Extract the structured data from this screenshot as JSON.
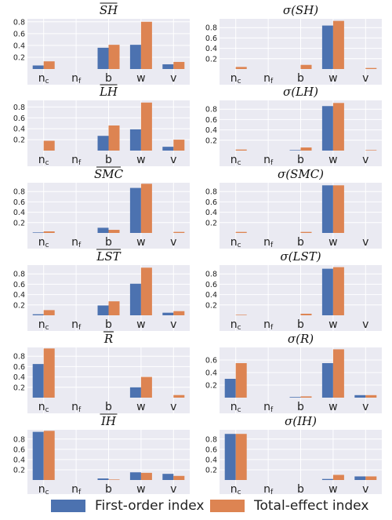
{
  "colors": {
    "first_order": "#4c72b0",
    "total_effect": "#dd8452",
    "panel_bg": "#eaeaf2",
    "grid": "#ffffff"
  },
  "legend": {
    "first_order_label": "First-order index",
    "total_effect_label": "Total-effect index"
  },
  "chart_data": [
    {
      "type": "bar",
      "title": "SH",
      "overline": true,
      "categories": [
        "nc",
        "nf",
        "b",
        "w",
        "v"
      ],
      "ylim": [
        0,
        0.85
      ],
      "yticks": [
        "0.2",
        "0.4",
        "0.6",
        "0.8"
      ],
      "ytick_values": [
        0.2,
        0.4,
        0.6,
        0.8
      ],
      "series": [
        {
          "name": "First-order index",
          "values": [
            0.06,
            0.0,
            0.36,
            0.41,
            0.08
          ]
        },
        {
          "name": "Total-effect index",
          "values": [
            0.13,
            0.0,
            0.41,
            0.8,
            0.12
          ]
        }
      ]
    },
    {
      "type": "bar",
      "title": "σ(SH)",
      "overline": false,
      "categories": [
        "nc",
        "nf",
        "b",
        "w",
        "v"
      ],
      "ylim": [
        0,
        0.97
      ],
      "yticks": [
        "0.2",
        "0.4",
        "0.6",
        "0.8"
      ],
      "ytick_values": [
        0.2,
        0.4,
        0.6,
        0.8
      ],
      "series": [
        {
          "name": "First-order index",
          "values": [
            0.0,
            0.0,
            0.0,
            0.84,
            0.0
          ]
        },
        {
          "name": "Total-effect index",
          "values": [
            0.04,
            0.0,
            0.08,
            0.93,
            0.02
          ]
        }
      ]
    },
    {
      "type": "bar",
      "title": "LH",
      "overline": true,
      "categories": [
        "nc",
        "nf",
        "b",
        "w",
        "v"
      ],
      "ylim": [
        0,
        0.92
      ],
      "yticks": [
        "0.2",
        "0.4",
        "0.6",
        "0.8"
      ],
      "ytick_values": [
        0.2,
        0.4,
        0.6,
        0.8
      ],
      "series": [
        {
          "name": "First-order index",
          "values": [
            0.0,
            0.0,
            0.27,
            0.39,
            0.07
          ]
        },
        {
          "name": "Total-effect index",
          "values": [
            0.18,
            0.0,
            0.46,
            0.88,
            0.2
          ]
        }
      ]
    },
    {
      "type": "bar",
      "title": "σ(LH)",
      "overline": false,
      "categories": [
        "nc",
        "nf",
        "b",
        "w",
        "v"
      ],
      "ylim": [
        0,
        0.97
      ],
      "yticks": [
        "0.2",
        "0.4",
        "0.6",
        "0.8"
      ],
      "ytick_values": [
        0.2,
        0.4,
        0.6,
        0.8
      ],
      "series": [
        {
          "name": "First-order index",
          "values": [
            0.0,
            0.0,
            0.01,
            0.86,
            0.0
          ]
        },
        {
          "name": "Total-effect index",
          "values": [
            0.02,
            0.0,
            0.06,
            0.92,
            0.01
          ]
        }
      ]
    },
    {
      "type": "bar",
      "title": "SMC",
      "overline": true,
      "categories": [
        "nc",
        "nf",
        "b",
        "w",
        "v"
      ],
      "ylim": [
        0,
        0.97
      ],
      "yticks": [
        "0.2",
        "0.4",
        "0.6",
        "0.8"
      ],
      "ytick_values": [
        0.2,
        0.4,
        0.6,
        0.8
      ],
      "series": [
        {
          "name": "First-order index",
          "values": [
            0.01,
            0.0,
            0.1,
            0.87,
            0.0
          ]
        },
        {
          "name": "Total-effect index",
          "values": [
            0.03,
            0.0,
            0.06,
            0.95,
            0.02
          ]
        }
      ]
    },
    {
      "type": "bar",
      "title": "σ(SMC)",
      "overline": false,
      "categories": [
        "nc",
        "nf",
        "b",
        "w",
        "v"
      ],
      "ylim": [
        0,
        0.97
      ],
      "yticks": [
        "0.2",
        "0.4",
        "0.6",
        "0.8"
      ],
      "ytick_values": [
        0.2,
        0.4,
        0.6,
        0.8
      ],
      "series": [
        {
          "name": "First-order index",
          "values": [
            0.0,
            0.0,
            0.0,
            0.92,
            0.0
          ]
        },
        {
          "name": "Total-effect index",
          "values": [
            0.02,
            0.0,
            0.02,
            0.92,
            0.0
          ]
        }
      ]
    },
    {
      "type": "bar",
      "title": "LST",
      "overline": true,
      "categories": [
        "nc",
        "nf",
        "b",
        "w",
        "v"
      ],
      "ylim": [
        0,
        0.97
      ],
      "yticks": [
        "0.2",
        "0.4",
        "0.6",
        "0.8"
      ],
      "ytick_values": [
        0.2,
        0.4,
        0.6,
        0.8
      ],
      "series": [
        {
          "name": "First-order index",
          "values": [
            0.02,
            0.0,
            0.19,
            0.61,
            0.05
          ]
        },
        {
          "name": "Total-effect index",
          "values": [
            0.1,
            0.0,
            0.27,
            0.92,
            0.08
          ]
        }
      ]
    },
    {
      "type": "bar",
      "title": "σ(LST)",
      "overline": false,
      "categories": [
        "nc",
        "nf",
        "b",
        "w",
        "v"
      ],
      "ylim": [
        0,
        0.97
      ],
      "yticks": [
        "0.2",
        "0.4",
        "0.6",
        "0.8"
      ],
      "ytick_values": [
        0.2,
        0.4,
        0.6,
        0.8
      ],
      "series": [
        {
          "name": "First-order index",
          "values": [
            0.0,
            0.0,
            0.0,
            0.9,
            0.0
          ]
        },
        {
          "name": "Total-effect index",
          "values": [
            0.01,
            0.0,
            0.03,
            0.93,
            0.0
          ]
        }
      ]
    },
    {
      "type": "bar",
      "title": "R",
      "overline": true,
      "categories": [
        "nc",
        "nf",
        "b",
        "w",
        "v"
      ],
      "ylim": [
        0,
        0.97
      ],
      "yticks": [
        "0.2",
        "0.4",
        "0.6",
        "0.8"
      ],
      "ytick_values": [
        0.2,
        0.4,
        0.6,
        0.8
      ],
      "series": [
        {
          "name": "First-order index",
          "values": [
            0.65,
            0.0,
            0.0,
            0.2,
            0.0
          ]
        },
        {
          "name": "Total-effect index",
          "values": [
            0.95,
            0.0,
            0.0,
            0.4,
            0.05
          ]
        }
      ]
    },
    {
      "type": "bar",
      "title": "σ(R)",
      "overline": false,
      "categories": [
        "nc",
        "nf",
        "b",
        "w",
        "v"
      ],
      "ylim": [
        0,
        0.8
      ],
      "yticks": [
        "0.2",
        "0.4",
        "0.6"
      ],
      "ytick_values": [
        0.2,
        0.4,
        0.6
      ],
      "series": [
        {
          "name": "First-order index",
          "values": [
            0.3,
            0.0,
            0.01,
            0.55,
            0.04
          ]
        },
        {
          "name": "Total-effect index",
          "values": [
            0.55,
            0.0,
            0.02,
            0.77,
            0.04
          ]
        }
      ]
    },
    {
      "type": "bar",
      "title": "IH",
      "overline": true,
      "categories": [
        "nc",
        "nf",
        "b",
        "w",
        "v"
      ],
      "ylim": [
        0,
        0.98
      ],
      "yticks": [
        "0.2",
        "0.4",
        "0.6",
        "0.8"
      ],
      "ytick_values": [
        0.2,
        0.4,
        0.6,
        0.8
      ],
      "series": [
        {
          "name": "First-order index",
          "values": [
            0.94,
            0.0,
            0.03,
            0.15,
            0.12
          ]
        },
        {
          "name": "Total-effect index",
          "values": [
            0.96,
            0.0,
            0.01,
            0.14,
            0.08
          ]
        }
      ]
    },
    {
      "type": "bar",
      "title": "σ(IH)",
      "overline": false,
      "categories": [
        "nc",
        "nf",
        "b",
        "w",
        "v"
      ],
      "ylim": [
        0,
        0.98
      ],
      "yticks": [
        "0.2",
        "0.4",
        "0.6",
        "0.8"
      ],
      "ytick_values": [
        0.2,
        0.4,
        0.6,
        0.8
      ],
      "series": [
        {
          "name": "First-order index",
          "values": [
            0.9,
            0.0,
            0.0,
            0.02,
            0.07
          ]
        },
        {
          "name": "Total-effect index",
          "values": [
            0.9,
            0.0,
            0.0,
            0.1,
            0.07
          ]
        }
      ]
    }
  ]
}
